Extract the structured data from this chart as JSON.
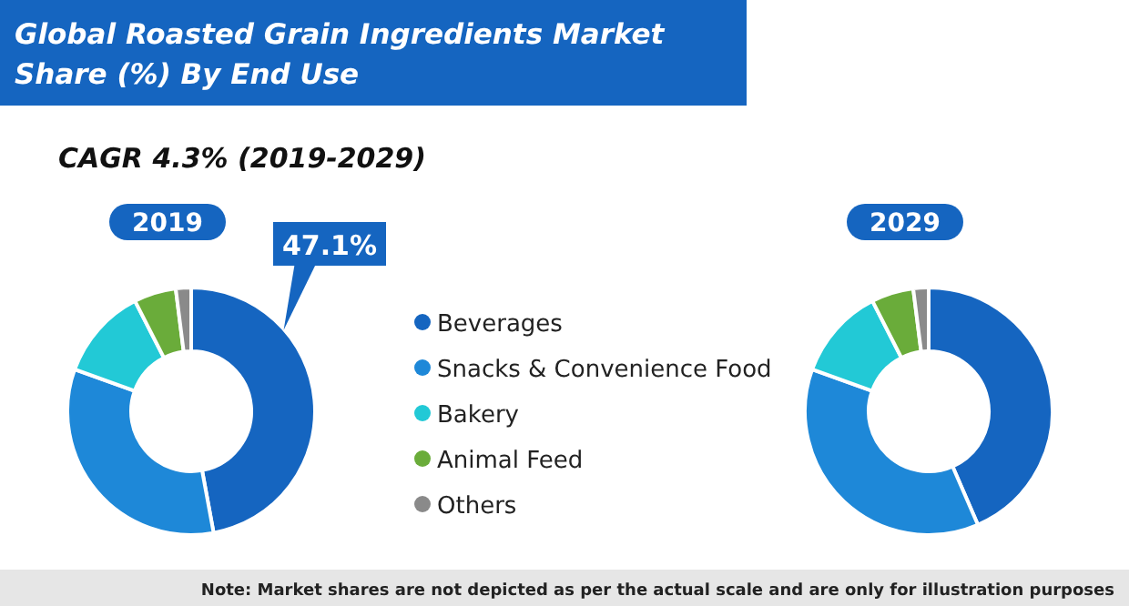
{
  "chart_data": [
    {
      "type": "other",
      "title": "Global Roasted Grain Ingredients Market Share (%) By End Use",
      "subtitle": "CAGR 4.3% (2019-2029)",
      "annotations": [
        "Note: Market shares are not depicted as per the actual scale and are only for illustration purposes"
      ]
    },
    {
      "type": "donut",
      "title": "2019",
      "categories": [
        "Beverages",
        "Snacks & Convenience Food",
        "Bakery",
        "Animal Feed",
        "Others"
      ],
      "values": [
        47.1,
        33.4,
        12,
        5.5,
        2
      ],
      "value_labels": [
        "47.1%",
        null,
        null,
        null,
        null
      ],
      "colors": [
        "#1565c0",
        "#1e88d8",
        "#22c9d6",
        "#6aac3a",
        "#8a8a8a"
      ],
      "legend": "right"
    },
    {
      "type": "donut",
      "title": "2029",
      "categories": [
        null,
        null,
        null,
        null,
        null
      ],
      "values": [
        43.5,
        37,
        12,
        5.5,
        2
      ],
      "colors": [
        "#1565c0",
        "#1e88d8",
        "#22c9d6",
        "#6aac3a",
        "#8a8a8a"
      ]
    }
  ]
}
